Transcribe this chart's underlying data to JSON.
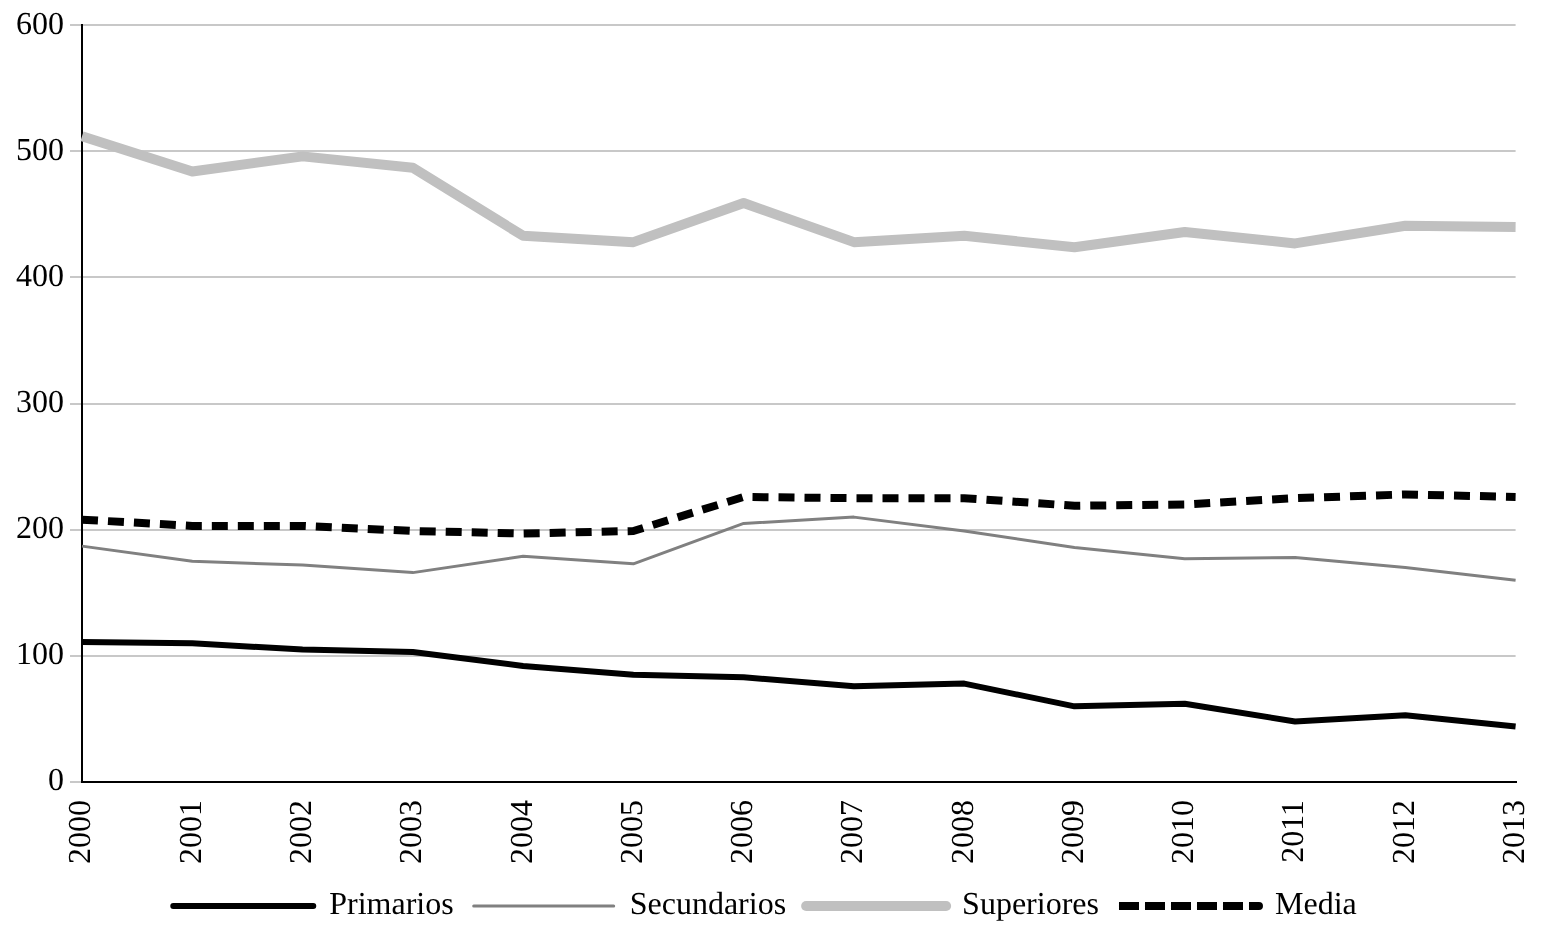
{
  "chart_data": {
    "type": "line",
    "categories": [
      "2000",
      "2001",
      "2002",
      "2003",
      "2004",
      "2005",
      "2006",
      "2007",
      "2008",
      "2009",
      "2010",
      "2011",
      "2012",
      "2013"
    ],
    "series": [
      {
        "name": "Primarios",
        "color": "#000000",
        "line_style": "solid",
        "values": [
          111,
          110,
          105,
          103,
          92,
          85,
          83,
          76,
          78,
          60,
          62,
          48,
          53,
          44
        ]
      },
      {
        "name": "Secundarios",
        "color": "#808080",
        "line_style": "solid",
        "values": [
          187,
          175,
          172,
          166,
          179,
          173,
          205,
          210,
          199,
          186,
          177,
          178,
          170,
          160
        ]
      },
      {
        "name": "Superiores",
        "color": "#c0c0c0",
        "line_style": "solid",
        "values": [
          512,
          484,
          496,
          487,
          433,
          428,
          459,
          428,
          433,
          424,
          436,
          427,
          441,
          440
        ]
      },
      {
        "name": "Media",
        "color": "#000000",
        "line_style": "dashed",
        "values": [
          208,
          203,
          203,
          199,
          197,
          199,
          226,
          225,
          225,
          219,
          220,
          225,
          228,
          226
        ]
      }
    ],
    "ylim": [
      0,
      600
    ],
    "yticks": [
      0,
      100,
      200,
      300,
      400,
      500,
      600
    ],
    "grid": "y",
    "legend": "bottom",
    "marker": "none"
  }
}
